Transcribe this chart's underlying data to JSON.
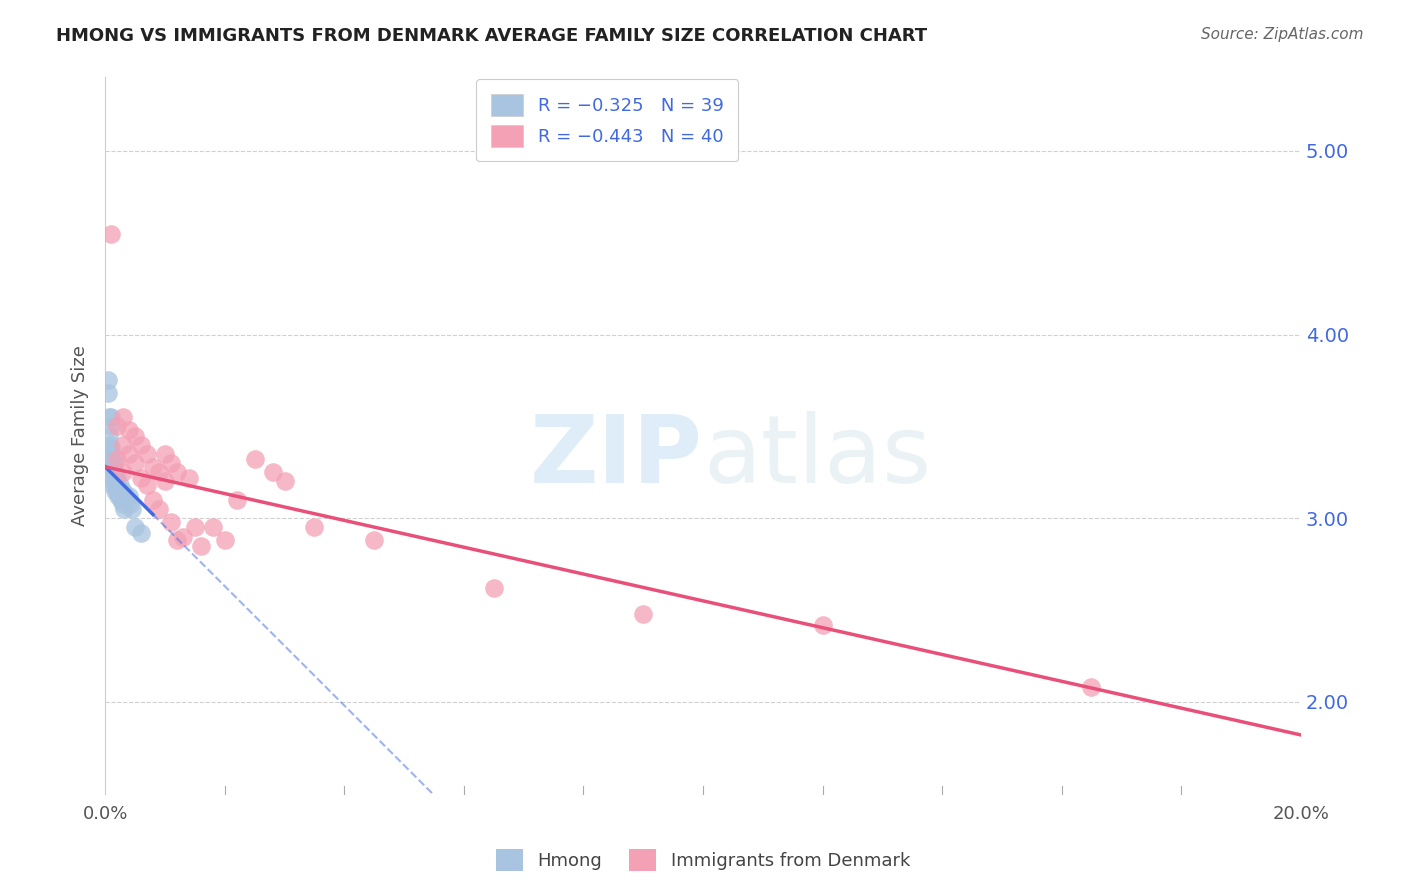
{
  "title": "HMONG VS IMMIGRANTS FROM DENMARK AVERAGE FAMILY SIZE CORRELATION CHART",
  "source": "Source: ZipAtlas.com",
  "ylabel": "Average Family Size",
  "hmong_color": "#a8c4e0",
  "denmark_color": "#f4a0b5",
  "hmong_line_color": "#4169e1",
  "denmark_line_color": "#e8507a",
  "background_color": "#ffffff",
  "right_yticks": [
    2.0,
    3.0,
    4.0,
    5.0
  ],
  "right_yticklabels": [
    "2.00",
    "3.00",
    "4.00",
    "5.00"
  ],
  "xlim": [
    0.0,
    0.2
  ],
  "ylim": [
    1.5,
    5.4
  ],
  "hmong_x": [
    0.0005,
    0.0005,
    0.0006,
    0.0006,
    0.0008,
    0.0008,
    0.0009,
    0.001,
    0.001,
    0.0012,
    0.0012,
    0.0013,
    0.0013,
    0.0014,
    0.0015,
    0.0015,
    0.0016,
    0.0016,
    0.0017,
    0.0017,
    0.0018,
    0.0018,
    0.0019,
    0.002,
    0.002,
    0.0022,
    0.0022,
    0.0024,
    0.0025,
    0.0027,
    0.003,
    0.003,
    0.0032,
    0.0035,
    0.004,
    0.0042,
    0.0045,
    0.005,
    0.006
  ],
  "hmong_y": [
    3.75,
    3.68,
    3.55,
    3.45,
    3.4,
    3.35,
    3.55,
    3.5,
    3.38,
    3.32,
    3.28,
    3.22,
    3.18,
    3.3,
    3.25,
    3.2,
    3.18,
    3.15,
    3.25,
    3.22,
    3.2,
    3.18,
    3.15,
    3.22,
    3.18,
    3.15,
    3.12,
    3.18,
    3.12,
    3.1,
    3.15,
    3.08,
    3.05,
    3.1,
    3.12,
    3.08,
    3.05,
    2.95,
    2.92
  ],
  "denmark_x": [
    0.001,
    0.002,
    0.002,
    0.003,
    0.003,
    0.003,
    0.004,
    0.004,
    0.005,
    0.005,
    0.006,
    0.006,
    0.007,
    0.007,
    0.008,
    0.008,
    0.009,
    0.009,
    0.01,
    0.01,
    0.011,
    0.011,
    0.012,
    0.012,
    0.013,
    0.014,
    0.015,
    0.016,
    0.018,
    0.02,
    0.022,
    0.025,
    0.028,
    0.03,
    0.035,
    0.045,
    0.065,
    0.09,
    0.12,
    0.165
  ],
  "denmark_y": [
    4.55,
    3.5,
    3.32,
    3.55,
    3.4,
    3.25,
    3.48,
    3.35,
    3.45,
    3.3,
    3.4,
    3.22,
    3.35,
    3.18,
    3.28,
    3.1,
    3.25,
    3.05,
    3.35,
    3.2,
    3.3,
    2.98,
    3.25,
    2.88,
    2.9,
    3.22,
    2.95,
    2.85,
    2.95,
    2.88,
    3.1,
    3.32,
    3.25,
    3.2,
    2.95,
    2.88,
    2.62,
    2.48,
    2.42,
    2.08
  ],
  "hmong_trendline_x": [
    0.0,
    0.008
  ],
  "hmong_trendline_y": [
    3.28,
    3.02
  ],
  "denmark_trendline_x": [
    0.0,
    0.2
  ],
  "denmark_trendline_y": [
    3.28,
    1.82
  ]
}
